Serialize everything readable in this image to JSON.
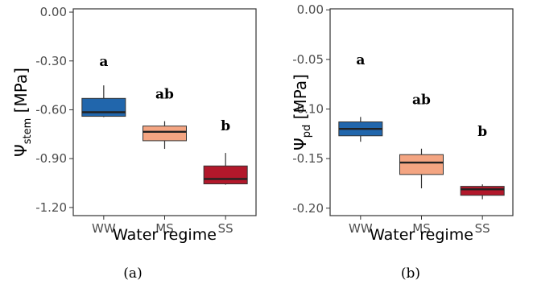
{
  "chart_data": [
    {
      "type": "box",
      "caption": "(a)",
      "ylabel_symbol": "Ψ",
      "ylabel_sub": "stem",
      "ylabel_unit": " [MPa]",
      "xlabel": "Water regime",
      "categories": [
        "WW",
        "MS",
        "SS"
      ],
      "ylim": [
        -1.25,
        0.02
      ],
      "yticks": [
        0.0,
        -0.3,
        -0.6,
        -0.9,
        -1.2
      ],
      "ytick_labels": [
        "0.00",
        "-0.30",
        "-0.60",
        "-0.90",
        "-1.20"
      ],
      "grid": false,
      "series": [
        {
          "category": "WW",
          "min": -0.645,
          "q1": -0.64,
          "median": -0.615,
          "q3": -0.53,
          "max": -0.45,
          "color": "#2166ac",
          "letter": "a"
        },
        {
          "category": "MS",
          "min": -0.84,
          "q1": -0.79,
          "median": -0.735,
          "q3": -0.7,
          "max": -0.67,
          "color": "#f4a582",
          "letter": "ab"
        },
        {
          "category": "SS",
          "min": -1.06,
          "q1": -1.055,
          "median": -1.025,
          "q3": -0.945,
          "max": -0.865,
          "color": "#b2182b",
          "letter": "b"
        }
      ],
      "letter_y": [
        -0.33,
        -0.53,
        -0.725
      ]
    },
    {
      "type": "box",
      "caption": "(b)",
      "ylabel_symbol": "Ψ",
      "ylabel_sub": "pd",
      "ylabel_unit": " [MPa]",
      "xlabel": "Water regime",
      "categories": [
        "WW",
        "MS",
        "SS"
      ],
      "ylim": [
        -0.2075,
        0.001
      ],
      "yticks": [
        0.0,
        -0.05,
        -0.1,
        -0.15,
        -0.2
      ],
      "ytick_labels": [
        "0.00",
        "-0.05",
        "-0.10",
        "-0.15",
        "-0.20"
      ],
      "grid": false,
      "series": [
        {
          "category": "WW",
          "min": -0.133,
          "q1": -0.127,
          "median": -0.12,
          "q3": -0.113,
          "max": -0.108,
          "color": "#2166ac",
          "letter": "a"
        },
        {
          "category": "MS",
          "min": -0.18,
          "q1": -0.166,
          "median": -0.154,
          "q3": -0.146,
          "max": -0.14,
          "color": "#f4a582",
          "letter": "ab"
        },
        {
          "category": "SS",
          "min": -0.191,
          "q1": -0.187,
          "median": -0.181,
          "q3": -0.178,
          "max": -0.176,
          "color": "#b2182b",
          "letter": "b"
        }
      ],
      "letter_y": [
        -0.055,
        -0.095,
        -0.127
      ]
    }
  ]
}
